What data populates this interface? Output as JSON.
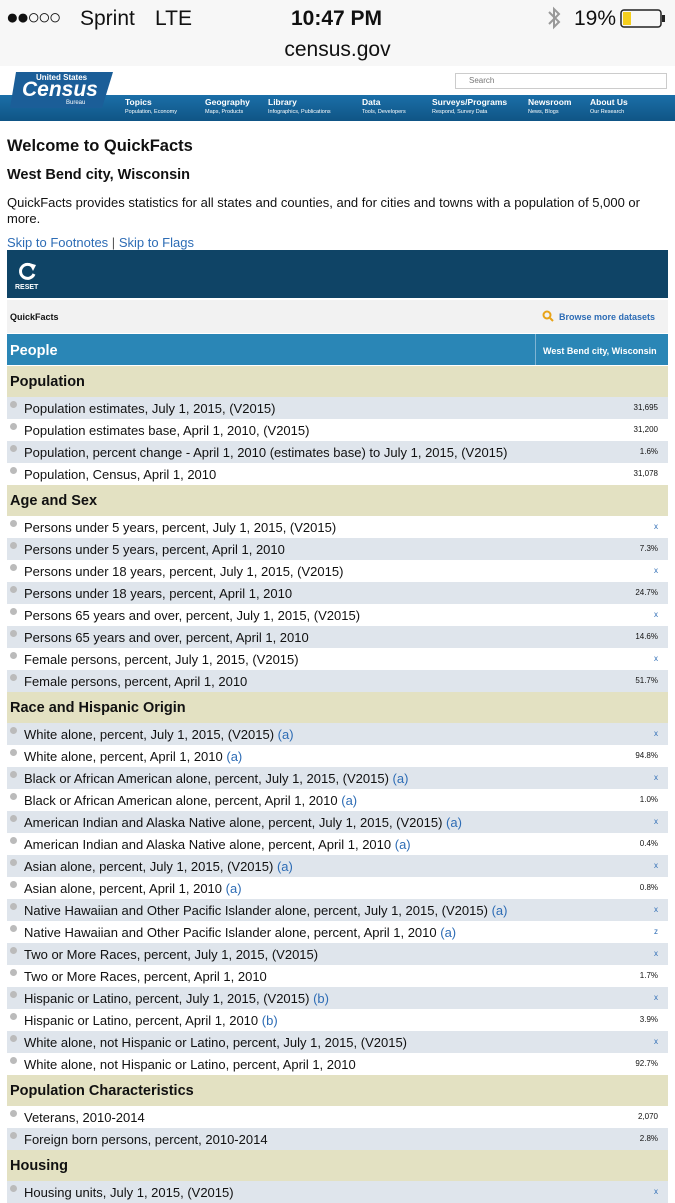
{
  "status_bar": {
    "signal": "●●○○○",
    "carrier": "Sprint",
    "network": "LTE",
    "time": "10:47 PM",
    "battery": "19%",
    "url": "census.gov"
  },
  "header": {
    "logo_top": "United States",
    "logo_main": "Census",
    "logo_sub": "Bureau",
    "search_placeholder": "Search",
    "nav": [
      {
        "label": "Topics",
        "sub": "Population, Economy"
      },
      {
        "label": "Geography",
        "sub": "Maps, Products"
      },
      {
        "label": "Library",
        "sub": "Infographics, Publications"
      },
      {
        "label": "Data",
        "sub": "Tools, Developers"
      },
      {
        "label": "Surveys/Programs",
        "sub": "Respond, Survey Data"
      },
      {
        "label": "Newsroom",
        "sub": "News, Blogs"
      },
      {
        "label": "About Us",
        "sub": "Our Research"
      }
    ]
  },
  "page": {
    "title": "Welcome to QuickFacts",
    "location": "West Bend city, Wisconsin",
    "intro": "QuickFacts provides statistics for all states and counties, and for cities and towns with a population of 5,000 or more.",
    "links": [
      "Skip to Footnotes",
      "Skip to Flags"
    ],
    "separator": "|"
  },
  "toolbar": {
    "reset": "RESET",
    "label": "QuickFacts",
    "browse": "Browse more datasets"
  },
  "table": {
    "header": [
      "People",
      "West Bend city, Wisconsin"
    ],
    "sections": [
      {
        "title": "Population",
        "rows": [
          {
            "label": "Population estimates, July 1, 2015, (V2015)",
            "value": "31,695"
          },
          {
            "label": "Population estimates base, April 1, 2010, (V2015)",
            "value": "31,200"
          },
          {
            "label": "Population, percent change - April 1, 2010 (estimates base) to July 1, 2015, (V2015)",
            "value": "1.6%"
          },
          {
            "label": "Population, Census, April 1, 2010",
            "value": "31,078"
          }
        ]
      },
      {
        "title": "Age and Sex",
        "rows": [
          {
            "label": "Persons under 5 years, percent, July 1, 2015, (V2015)",
            "value": "x"
          },
          {
            "label": "Persons under 5 years, percent, April 1, 2010",
            "value": "7.3%"
          },
          {
            "label": "Persons under 18 years, percent, July 1, 2015, (V2015)",
            "value": "x"
          },
          {
            "label": "Persons under 18 years, percent, April 1, 2010",
            "value": "24.7%"
          },
          {
            "label": "Persons 65 years and over, percent, July 1, 2015, (V2015)",
            "value": "x"
          },
          {
            "label": "Persons 65 years and over, percent, April 1, 2010",
            "value": "14.6%"
          },
          {
            "label": "Female persons, percent, July 1, 2015, (V2015)",
            "value": "x"
          },
          {
            "label": "Female persons, percent, April 1, 2010",
            "value": "51.7%"
          }
        ]
      },
      {
        "title": "Race and Hispanic Origin",
        "rows": [
          {
            "label": "White alone, percent, July 1, 2015, (V2015)",
            "note": "(a)",
            "value": "x"
          },
          {
            "label": "White alone, percent, April 1, 2010",
            "note": "(a)",
            "value": "94.8%"
          },
          {
            "label": "Black or African American alone, percent, July 1, 2015, (V2015)",
            "note": "(a)",
            "value": "x"
          },
          {
            "label": "Black or African American alone, percent, April 1, 2010",
            "note": "(a)",
            "value": "1.0%"
          },
          {
            "label": "American Indian and Alaska Native alone, percent, July 1, 2015, (V2015)",
            "note": "(a)",
            "value": "x"
          },
          {
            "label": "American Indian and Alaska Native alone, percent, April 1, 2010",
            "note": "(a)",
            "value": "0.4%"
          },
          {
            "label": "Asian alone, percent, July 1, 2015, (V2015)",
            "note": "(a)",
            "value": "x"
          },
          {
            "label": "Asian alone, percent, April 1, 2010",
            "note": "(a)",
            "value": "0.8%"
          },
          {
            "label": "Native Hawaiian and Other Pacific Islander alone, percent, July 1, 2015, (V2015)",
            "note": "(a)",
            "value": "x"
          },
          {
            "label": "Native Hawaiian and Other Pacific Islander alone, percent, April 1, 2010",
            "note": "(a)",
            "value": "z"
          },
          {
            "label": "Two or More Races, percent, July 1, 2015, (V2015)",
            "value": "x"
          },
          {
            "label": "Two or More Races, percent, April 1, 2010",
            "value": "1.7%"
          },
          {
            "label": "Hispanic or Latino, percent, July 1, 2015, (V2015)",
            "note": "(b)",
            "value": "x"
          },
          {
            "label": "Hispanic or Latino, percent, April 1, 2010",
            "note": "(b)",
            "value": "3.9%"
          },
          {
            "label": "White alone, not Hispanic or Latino, percent, July 1, 2015, (V2015)",
            "value": "x"
          },
          {
            "label": "White alone, not Hispanic or Latino, percent, April 1, 2010",
            "value": "92.7%"
          }
        ]
      },
      {
        "title": "Population Characteristics",
        "rows": [
          {
            "label": "Veterans, 2010-2014",
            "value": "2,070"
          },
          {
            "label": "Foreign born persons, percent, 2010-2014",
            "value": "2.8%"
          }
        ]
      },
      {
        "title": "Housing",
        "rows": [
          {
            "label": "Housing units, July 1, 2015, (V2015)",
            "value": "x"
          }
        ]
      }
    ]
  }
}
